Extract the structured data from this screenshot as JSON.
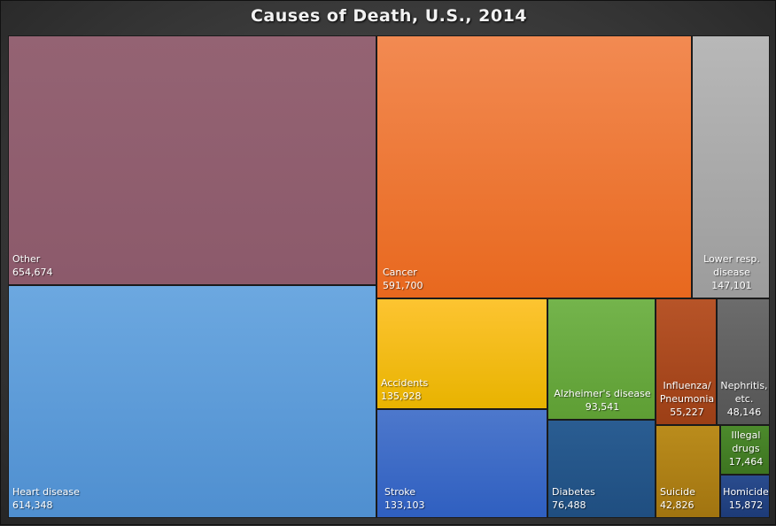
{
  "chart_data": {
    "type": "treemap",
    "title": "Causes of Death, U.S., 2014",
    "items": [
      {
        "label": "Other",
        "value_text": "654,674",
        "value": 654674,
        "color_top": "#946373",
        "color_bottom": "#8c5a6b"
      },
      {
        "label": "Heart disease",
        "value_text": "614,348",
        "value": 614348,
        "color_top": "#6ca8e0",
        "color_bottom": "#4f8fd0"
      },
      {
        "label": "Cancer",
        "value_text": "591,700",
        "value": 591700,
        "color_top": "#f28a52",
        "color_bottom": "#e8681e"
      },
      {
        "label": "Lower resp.\ndisease",
        "value_text": "147,101",
        "value": 147101,
        "color_top": "#b8b8b8",
        "color_bottom": "#9c9c9c"
      },
      {
        "label": "Accidents",
        "value_text": "135,928",
        "value": 135928,
        "color_top": "#fdc431",
        "color_bottom": "#e8b300"
      },
      {
        "label": "Stroke",
        "value_text": "133,103",
        "value": 133103,
        "color_top": "#4d78cc",
        "color_bottom": "#2f5fc0"
      },
      {
        "label": "Alzheimer's disease",
        "value_text": "93,541",
        "value": 93541,
        "color_top": "#74b44c",
        "color_bottom": "#5e9e34"
      },
      {
        "label": "Diabetes",
        "value_text": "76,488",
        "value": 76488,
        "color_top": "#2a5d92",
        "color_bottom": "#1f4e80"
      },
      {
        "label": "Influenza/\nPneumonia",
        "value_text": "55,227",
        "value": 55227,
        "color_top": "#b75428",
        "color_bottom": "#9c3f16"
      },
      {
        "label": "Nephritis,\netc.",
        "value_text": "48,146",
        "value": 48146,
        "color_top": "#6c6c6c",
        "color_bottom": "#555555"
      },
      {
        "label": "Suicide",
        "value_text": "42,826",
        "value": 42826,
        "color_top": "#ba8c1c",
        "color_bottom": "#a17410"
      },
      {
        "label": "Illegal\ndrugs",
        "value_text": "17,464",
        "value": 17464,
        "color_top": "#4c8a2c",
        "color_bottom": "#3d7420"
      },
      {
        "label": "Homicide",
        "value_text": "15,872",
        "value": 15872,
        "color_top": "#2a4c8e",
        "color_bottom": "#1d3b78"
      }
    ]
  }
}
